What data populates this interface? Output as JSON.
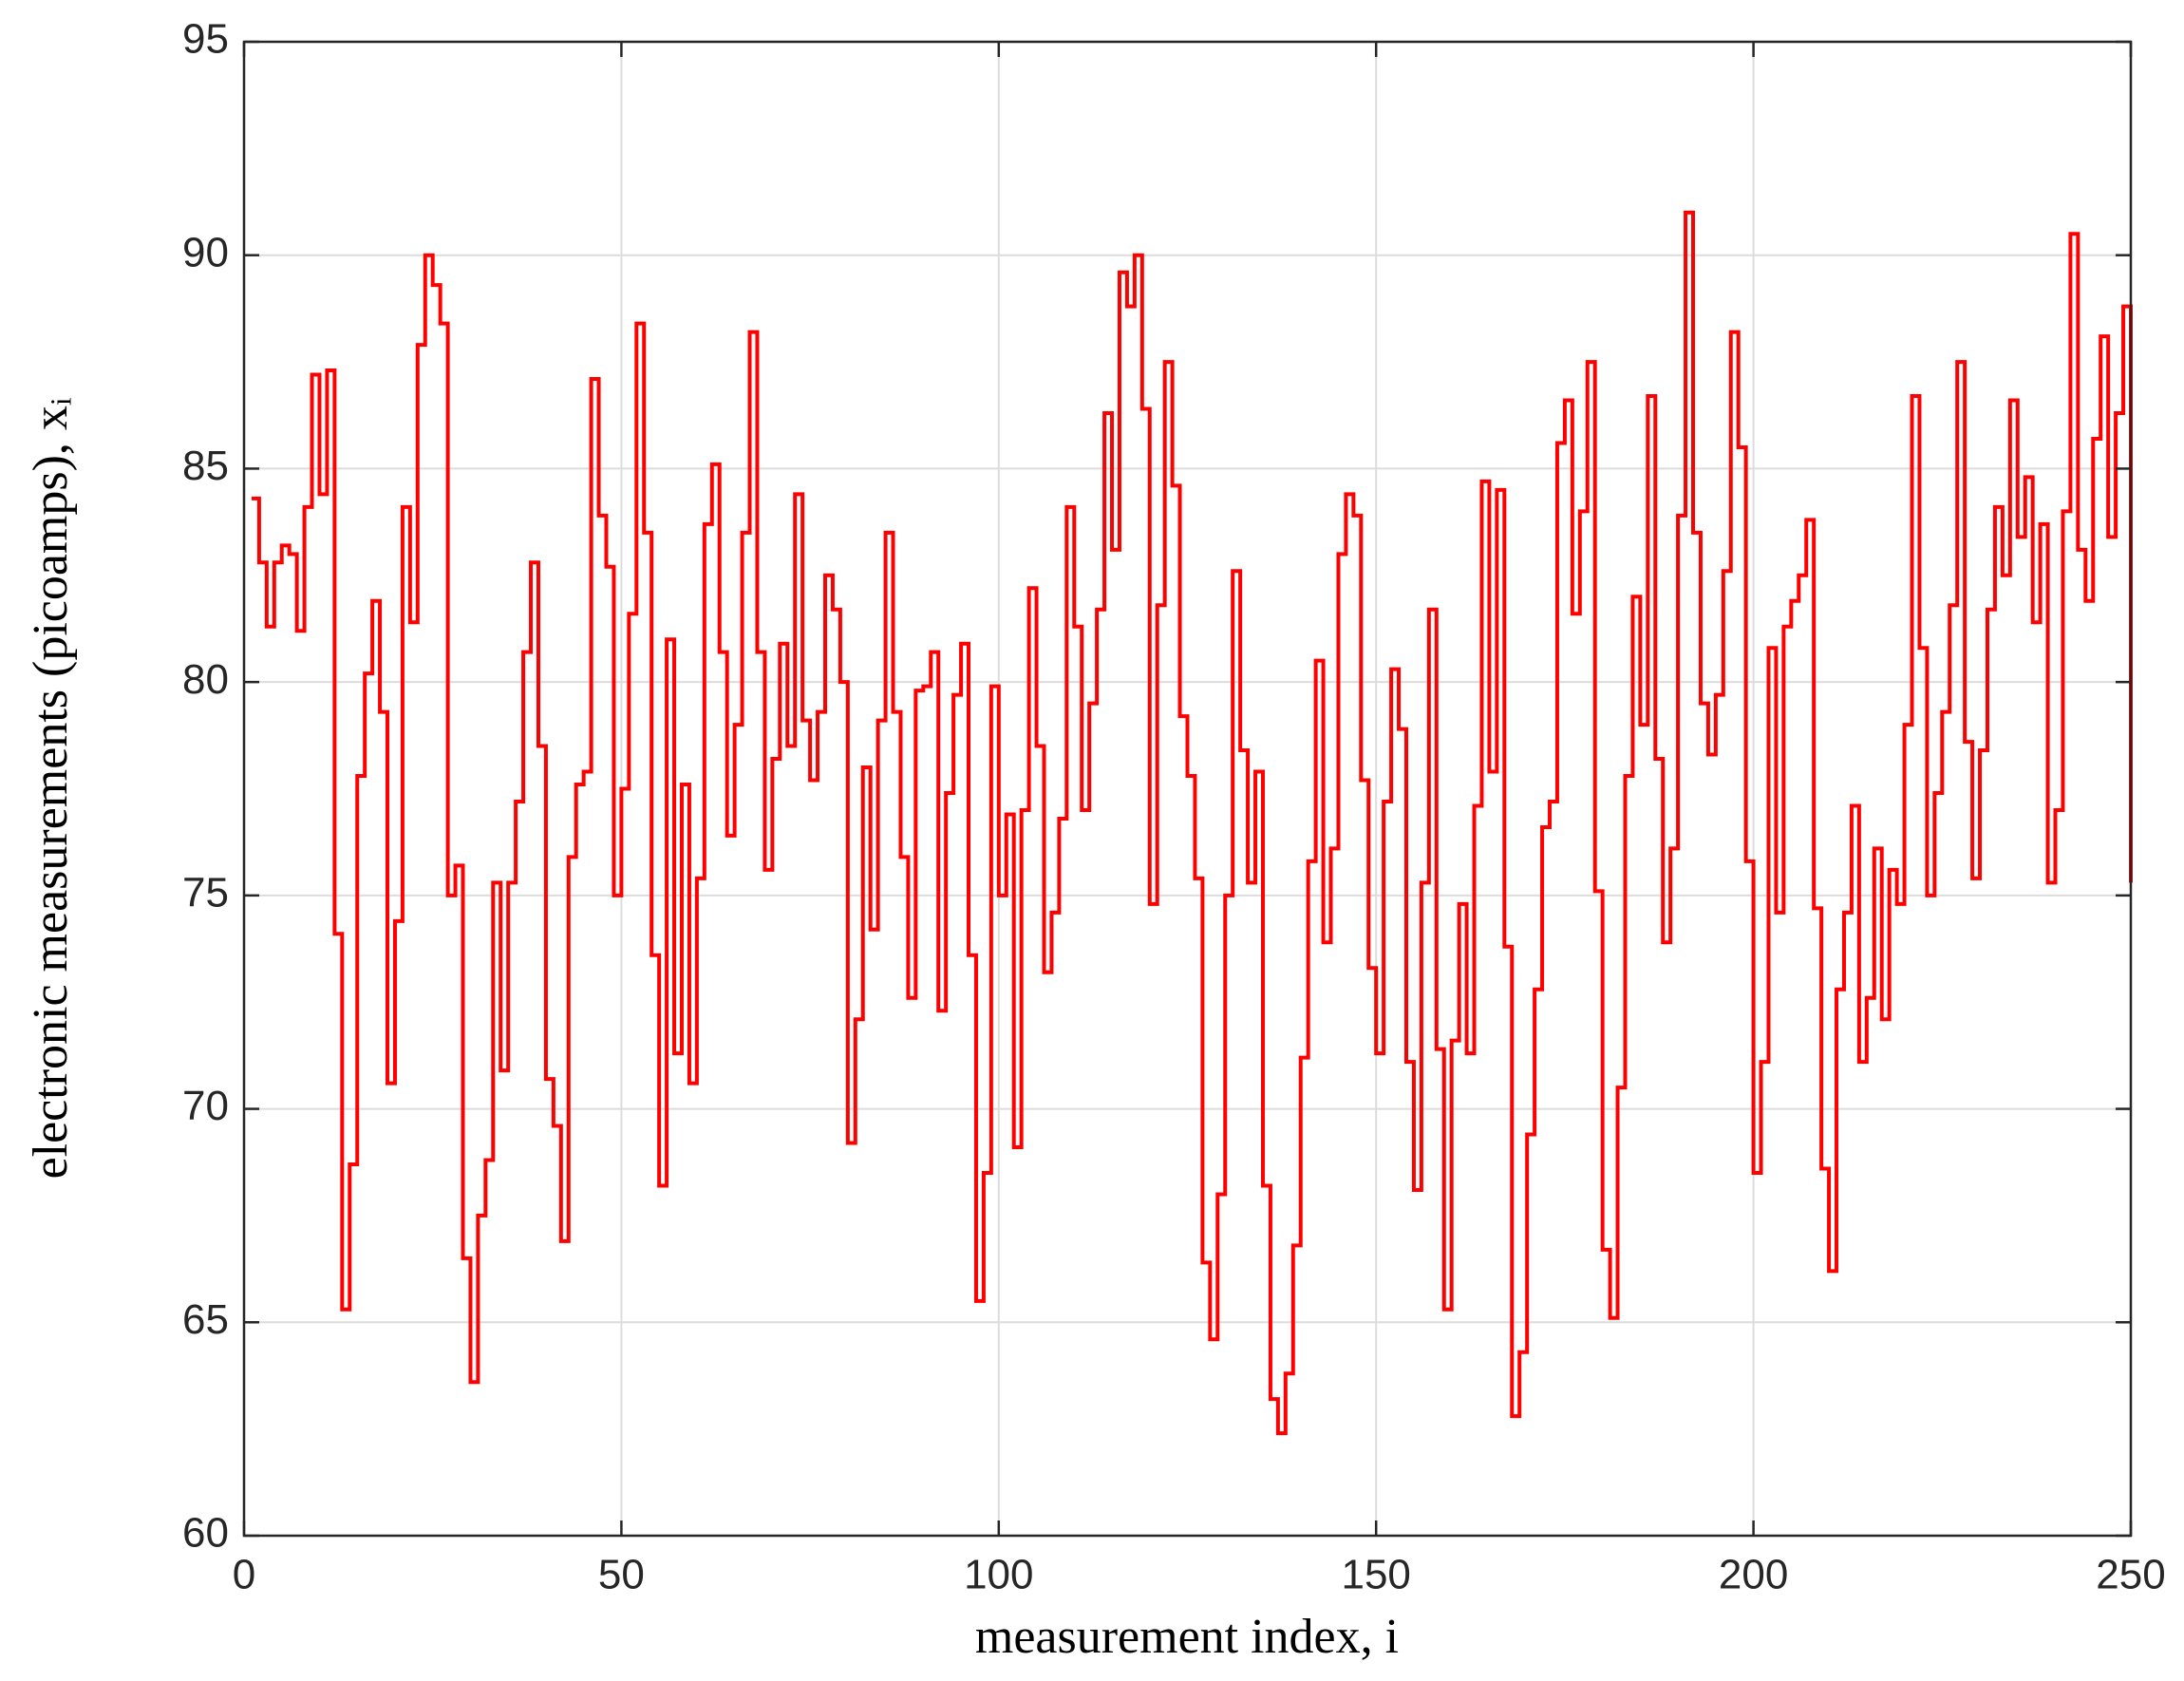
{
  "chart_data": {
    "type": "stairs",
    "xlabel": "measurement index, i",
    "ylabel": "electronic measurements (picoamps), xᵢ",
    "x": [
      1,
      2,
      3,
      4,
      5,
      6,
      7,
      8,
      9,
      10,
      11,
      12,
      13,
      14,
      15,
      16,
      17,
      18,
      19,
      20,
      21,
      22,
      23,
      24,
      25,
      26,
      27,
      28,
      29,
      30,
      31,
      32,
      33,
      34,
      35,
      36,
      37,
      38,
      39,
      40,
      41,
      42,
      43,
      44,
      45,
      46,
      47,
      48,
      49,
      50,
      51,
      52,
      53,
      54,
      55,
      56,
      57,
      58,
      59,
      60,
      61,
      62,
      63,
      64,
      65,
      66,
      67,
      68,
      69,
      70,
      71,
      72,
      73,
      74,
      75,
      76,
      77,
      78,
      79,
      80,
      81,
      82,
      83,
      84,
      85,
      86,
      87,
      88,
      89,
      90,
      91,
      92,
      93,
      94,
      95,
      96,
      97,
      98,
      99,
      100,
      101,
      102,
      103,
      104,
      105,
      106,
      107,
      108,
      109,
      110,
      111,
      112,
      113,
      114,
      115,
      116,
      117,
      118,
      119,
      120,
      121,
      122,
      123,
      124,
      125,
      126,
      127,
      128,
      129,
      130,
      131,
      132,
      133,
      134,
      135,
      136,
      137,
      138,
      139,
      140,
      141,
      142,
      143,
      144,
      145,
      146,
      147,
      148,
      149,
      150,
      151,
      152,
      153,
      154,
      155,
      156,
      157,
      158,
      159,
      160,
      161,
      162,
      163,
      164,
      165,
      166,
      167,
      168,
      169,
      170,
      171,
      172,
      173,
      174,
      175,
      176,
      177,
      178,
      179,
      180,
      181,
      182,
      183,
      184,
      185,
      186,
      187,
      188,
      189,
      190,
      191,
      192,
      193,
      194,
      195,
      196,
      197,
      198,
      199,
      200,
      201,
      202,
      203,
      204,
      205,
      206,
      207,
      208,
      209,
      210,
      211,
      212,
      213,
      214,
      215,
      216,
      217,
      218,
      219,
      220,
      221,
      222,
      223,
      224,
      225,
      226,
      227,
      228,
      229,
      230,
      231,
      232,
      233,
      234,
      235,
      236,
      237,
      238,
      239,
      240,
      241,
      242,
      243,
      244,
      245,
      246,
      247,
      248,
      249,
      250
    ],
    "values": [
      84.3,
      82.8,
      81.3,
      82.8,
      83.2,
      83.0,
      81.2,
      84.1,
      87.2,
      84.4,
      87.3,
      74.1,
      65.3,
      68.7,
      77.8,
      80.2,
      81.9,
      79.3,
      70.6,
      74.4,
      84.1,
      81.4,
      87.9,
      90.0,
      89.3,
      88.4,
      75.0,
      75.7,
      66.5,
      63.6,
      67.5,
      68.8,
      75.3,
      70.9,
      75.3,
      77.2,
      80.7,
      82.8,
      78.5,
      70.7,
      69.6,
      66.9,
      75.9,
      77.6,
      77.9,
      87.1,
      83.9,
      82.7,
      75.0,
      77.5,
      81.6,
      88.4,
      83.5,
      73.6,
      68.2,
      81.0,
      71.3,
      77.6,
      70.6,
      75.4,
      83.7,
      85.1,
      80.7,
      76.4,
      79.0,
      83.5,
      88.2,
      80.7,
      75.6,
      78.2,
      80.9,
      78.5,
      84.4,
      79.1,
      77.7,
      79.3,
      82.5,
      81.7,
      80.0,
      69.2,
      72.1,
      78.0,
      74.2,
      79.1,
      83.5,
      79.3,
      75.9,
      72.6,
      79.8,
      79.9,
      80.7,
      72.3,
      77.4,
      79.7,
      80.9,
      73.6,
      65.5,
      68.5,
      79.9,
      75.0,
      76.9,
      69.1,
      77.0,
      82.2,
      78.5,
      73.2,
      74.6,
      76.8,
      84.1,
      81.3,
      77.0,
      79.5,
      81.7,
      86.3,
      83.1,
      89.6,
      88.8,
      90.0,
      86.4,
      74.8,
      81.8,
      87.5,
      84.6,
      79.2,
      77.8,
      75.4,
      66.4,
      64.6,
      68.0,
      75.0,
      82.6,
      78.4,
      75.3,
      77.9,
      68.2,
      63.2,
      62.4,
      63.8,
      66.8,
      71.2,
      75.8,
      80.5,
      73.9,
      76.1,
      83.0,
      84.4,
      83.9,
      77.7,
      73.3,
      71.3,
      77.2,
      80.3,
      78.9,
      71.1,
      68.1,
      75.3,
      81.7,
      71.4,
      65.3,
      71.6,
      74.8,
      71.3,
      77.1,
      84.7,
      77.9,
      84.5,
      73.8,
      62.8,
      64.3,
      69.4,
      72.8,
      76.6,
      77.2,
      85.6,
      86.6,
      81.6,
      84.0,
      87.5,
      75.1,
      66.7,
      65.1,
      70.5,
      77.8,
      82.0,
      79.0,
      86.7,
      78.2,
      73.9,
      76.1,
      83.9,
      91.0,
      83.5,
      79.5,
      78.3,
      79.7,
      82.6,
      88.2,
      85.5,
      75.8,
      68.5,
      71.1,
      80.8,
      74.6,
      81.3,
      81.9,
      82.5,
      83.8,
      74.7,
      68.6,
      66.2,
      72.8,
      74.6,
      77.1,
      71.1,
      72.6,
      76.1,
      72.1,
      75.6,
      74.8,
      79.0,
      86.7,
      80.8,
      75.0,
      77.4,
      79.3,
      81.8,
      87.5,
      78.6,
      75.4,
      78.4,
      81.7,
      84.1,
      82.5,
      86.6,
      83.4,
      84.8,
      81.4,
      83.7,
      75.3,
      77.0,
      84.0,
      90.5,
      83.1,
      81.9,
      85.7,
      88.1,
      83.4,
      86.3,
      88.8,
      75.3
    ],
    "color": "#ff0000",
    "xlim": [
      0,
      250
    ],
    "xticks": [
      0,
      50,
      100,
      150,
      200,
      250
    ],
    "ylim": [
      60,
      95
    ],
    "yticks": [
      60,
      65,
      70,
      75,
      80,
      85,
      90,
      95
    ],
    "grid": true
  }
}
